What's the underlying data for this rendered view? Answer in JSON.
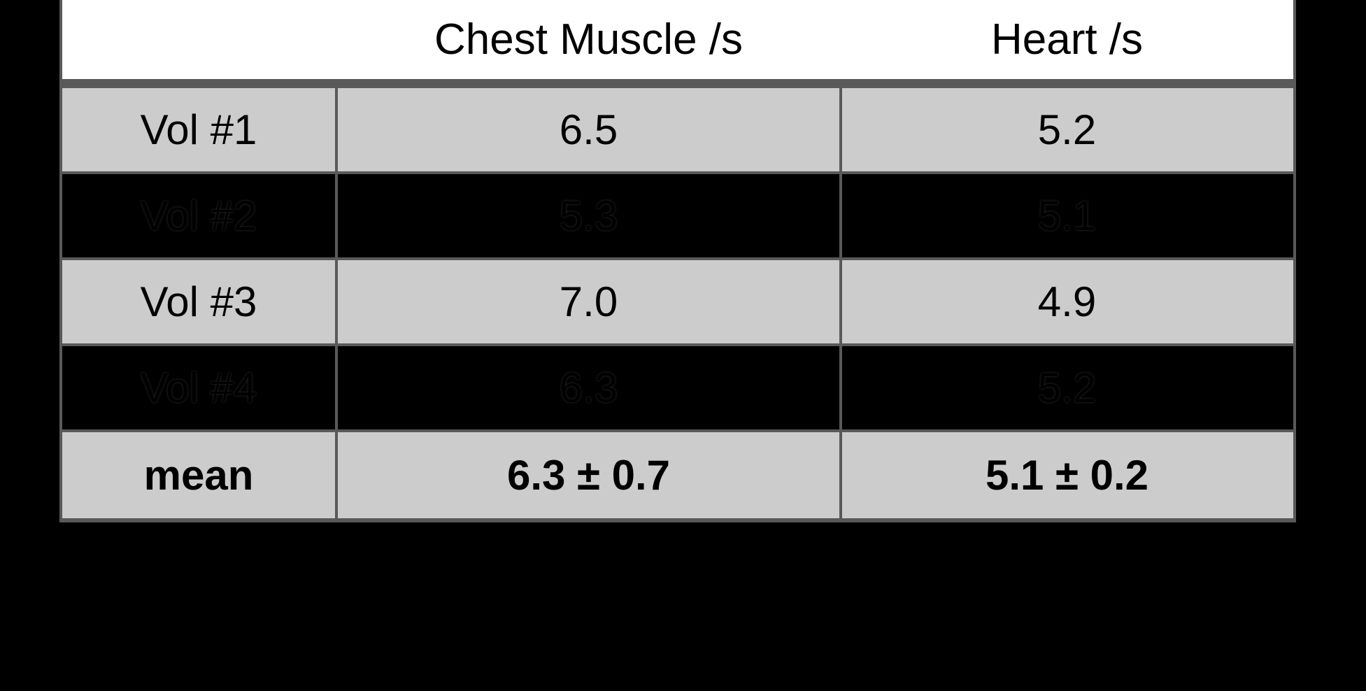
{
  "page": {
    "background_color": "#000000",
    "table_header_background": "#ffffff",
    "band_gray_color": "#cccccc",
    "band_dark_color": "#000000",
    "border_color": "#595959",
    "text_color": "#000000"
  },
  "table": {
    "header": {
      "label_col": "",
      "chest_col": "Chest Muscle /s",
      "heart_col": "Heart /s"
    },
    "rows": [
      {
        "label": "Vol #1",
        "chest": "6.5",
        "heart": "5.2"
      },
      {
        "label": "Vol #2",
        "chest": "5.3",
        "heart": "5.1"
      },
      {
        "label": "Vol #3",
        "chest": "7.0",
        "heart": "4.9"
      },
      {
        "label": "Vol #4",
        "chest": "6.3",
        "heart": "5.2"
      },
      {
        "label": "mean",
        "chest": "6.3 ± 0.7",
        "heart": "5.1 ± 0.2"
      }
    ]
  },
  "chart_data": {
    "type": "table",
    "title": "",
    "columns": [
      "",
      "Chest Muscle /s",
      "Heart /s"
    ],
    "categories": [
      "Vol #1",
      "Vol #2",
      "Vol #3",
      "Vol #4",
      "mean"
    ],
    "series": [
      {
        "name": "Chest Muscle /s",
        "values": [
          6.5,
          5.3,
          7.0,
          6.3
        ],
        "mean": 6.3,
        "sd": 0.7,
        "mean_label": "6.3 ± 0.7"
      },
      {
        "name": "Heart /s",
        "values": [
          5.2,
          5.1,
          4.9,
          5.2
        ],
        "mean": 5.1,
        "sd": 0.2,
        "mean_label": "5.1 ± 0.2"
      }
    ],
    "layout_hints": {
      "banding": [
        "gray",
        "dark",
        "gray",
        "dark",
        "gray"
      ],
      "header_background": "#ffffff",
      "mean_row_bold": true,
      "dark_band_text_nearly_invisible": true
    }
  }
}
